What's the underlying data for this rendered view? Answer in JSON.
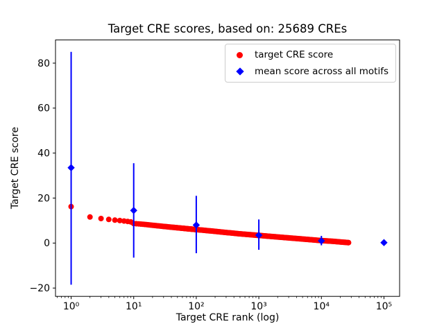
{
  "figure": {
    "title": "Target CRE scores, based on: 25689 CREs",
    "xlabel": "Target CRE rank (log)",
    "ylabel": "Target CRE score"
  },
  "legend": {
    "entries": [
      {
        "label": "target CRE score",
        "marker": "circle",
        "color": "#ff0000"
      },
      {
        "label": "mean score across all motifs",
        "marker": "diamond",
        "color": "#0000ff"
      }
    ]
  },
  "chart_data": {
    "type": "scatter",
    "title": "Target CRE scores, based on: 25689 CREs",
    "xlabel": "Target CRE rank (log)",
    "ylabel": "Target CRE score",
    "x_scale": "log",
    "grid": false,
    "legend_position": "upper right",
    "xlim_log10": [
      -0.25,
      5.25
    ],
    "ylim": [
      -23.7,
      90.3
    ],
    "x_ticks": {
      "values": [
        1,
        10,
        100,
        1000,
        10000,
        100000
      ],
      "labels": [
        "10⁰",
        "10¹",
        "10²",
        "10³",
        "10⁴",
        "10⁵"
      ]
    },
    "y_ticks": {
      "values": [
        -20,
        0,
        20,
        40,
        60,
        80
      ],
      "labels": [
        "−20",
        "0",
        "20",
        "40",
        "60",
        "80"
      ]
    },
    "series": [
      {
        "name": "target CRE score",
        "render": "dense-scatter",
        "color": "#ff0000",
        "marker": "circle",
        "n_points_stated": 25689,
        "max_rank": 27000,
        "anchors": [
          [
            1,
            16.2
          ],
          [
            2,
            11.6
          ],
          [
            3,
            10.9
          ],
          [
            4,
            10.5
          ],
          [
            5,
            10.2
          ],
          [
            6,
            10.0
          ],
          [
            7,
            9.8
          ],
          [
            8,
            9.6
          ],
          [
            9,
            9.4
          ],
          [
            10,
            8.7
          ],
          [
            15,
            8.3
          ],
          [
            20,
            7.9
          ],
          [
            30,
            7.4
          ],
          [
            50,
            6.8
          ],
          [
            70,
            6.4
          ],
          [
            100,
            6.0
          ],
          [
            200,
            5.2
          ],
          [
            300,
            4.7
          ],
          [
            500,
            4.1
          ],
          [
            1000,
            3.4
          ],
          [
            2000,
            2.7
          ],
          [
            3000,
            2.3
          ],
          [
            5000,
            1.8
          ],
          [
            10000,
            1.1
          ],
          [
            15000,
            0.8
          ],
          [
            20000,
            0.5
          ],
          [
            27000,
            0.2
          ]
        ]
      },
      {
        "name": "mean score across all motifs",
        "render": "errorbar",
        "color": "#0000ff",
        "marker": "diamond",
        "x": [
          1,
          10,
          100,
          1000,
          10000,
          100000
        ],
        "mean": [
          33.5,
          14.5,
          8.0,
          3.5,
          1.0,
          0.2
        ],
        "err_low": [
          -18.5,
          -6.5,
          -4.5,
          -3.0,
          -1.0,
          -0.1
        ],
        "err_high": [
          85.0,
          35.5,
          21.0,
          10.5,
          3.2,
          0.5
        ]
      }
    ]
  }
}
